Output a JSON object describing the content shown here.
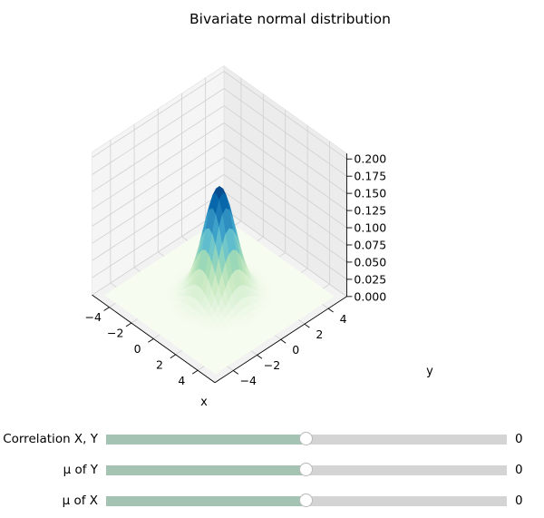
{
  "chart_data": {
    "type": "surface",
    "title": "Bivariate normal distribution",
    "xlabel": "x",
    "ylabel": "y",
    "zlabel": "",
    "xlim": [
      -5,
      5
    ],
    "ylim": [
      -5,
      5
    ],
    "zlim": [
      0,
      0.2
    ],
    "x_ticks": [
      -4,
      -2,
      0,
      2,
      4
    ],
    "y_ticks": [
      -4,
      -2,
      0,
      2,
      4
    ],
    "z_ticks": [
      0,
      0.025,
      0.05,
      0.075,
      0.1,
      0.125,
      0.15,
      0.175,
      0.2
    ],
    "x_tick_labels": [
      "−4",
      "−2",
      "0",
      "2",
      "4"
    ],
    "y_tick_labels": [
      "−4",
      "−2",
      "0",
      "2",
      "4"
    ],
    "z_tick_labels": [
      "0.000",
      "0.025",
      "0.050",
      "0.075",
      "0.100",
      "0.125",
      "0.150",
      "0.175",
      "0.200"
    ],
    "parameters": {
      "mu_x": 0,
      "mu_y": 0,
      "sigma_x": 1,
      "sigma_y": 1,
      "correlation": 0
    },
    "peak_density": 0.159,
    "colormap": "GnBu",
    "grid": true
  },
  "sliders": [
    {
      "label": "Correlation X, Y",
      "value": "0",
      "position": 0.5
    },
    {
      "label": "μ of Y",
      "value": "0",
      "position": 0.5
    },
    {
      "label": "μ of X",
      "value": "0",
      "position": 0.5
    }
  ]
}
